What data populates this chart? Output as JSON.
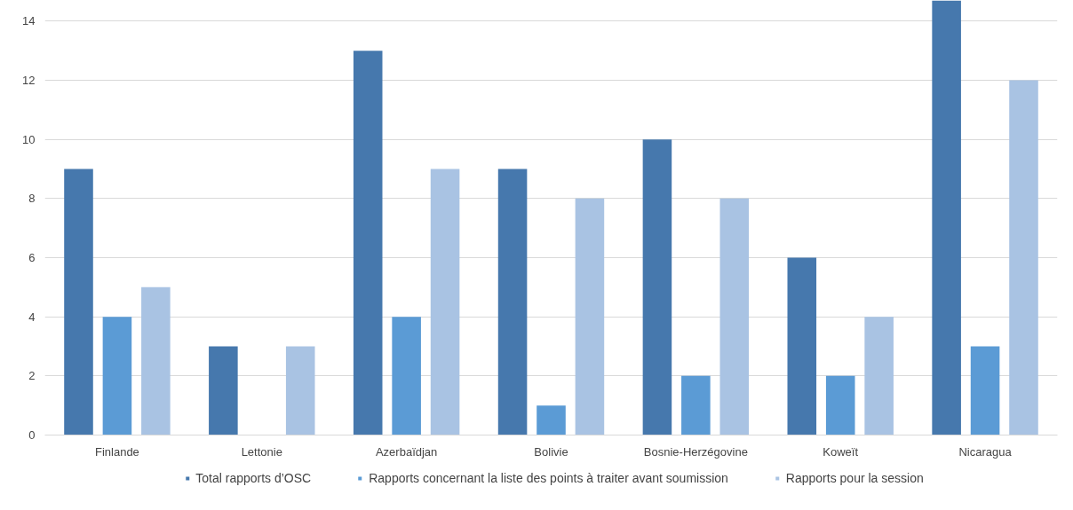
{
  "chart_data": {
    "type": "bar",
    "categories": [
      "Finlande",
      "Lettonie",
      "Azerbaïdjan",
      "Bolivie",
      "Bosnie-Herzégovine",
      "Koweït",
      "Nicaragua"
    ],
    "series": [
      {
        "name": "Total rapports d’OSC",
        "color": "#4678ad",
        "values": [
          9,
          3,
          13,
          9,
          10,
          6,
          14.7
        ]
      },
      {
        "name": "Rapports concernant la liste des points à traiter avant soumission",
        "color": "#5b9bd5",
        "values": [
          4,
          0,
          4,
          1,
          2,
          2,
          3
        ]
      },
      {
        "name": "Rapports pour la session",
        "color": "#a9c3e3",
        "values": [
          5,
          3,
          9,
          8,
          8,
          4,
          12
        ]
      }
    ],
    "ylim": [
      0,
      14.7
    ],
    "yticks": [
      0,
      2,
      4,
      6,
      8,
      10,
      12,
      14
    ],
    "grid": "y",
    "legend": "bottom"
  }
}
